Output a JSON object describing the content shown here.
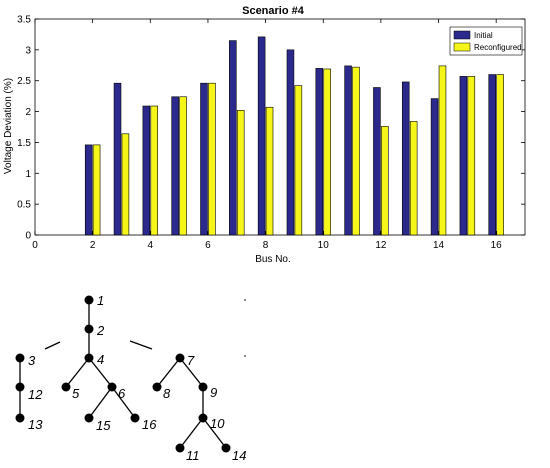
{
  "chart_data": {
    "type": "bar",
    "title": "Scenario #4",
    "xlabel": "Bus No.",
    "ylabel": "Voltage Deviation (%)",
    "xlim": [
      0,
      17
    ],
    "ylim": [
      0,
      3.5
    ],
    "xticks": [
      0,
      2,
      4,
      6,
      8,
      10,
      12,
      14,
      16
    ],
    "yticks": [
      0,
      0.5,
      1,
      1.5,
      2,
      2.5,
      3,
      3.5
    ],
    "legend_position": "top-right",
    "x": [
      2,
      3,
      4,
      5,
      6,
      7,
      8,
      9,
      10,
      11,
      12,
      13,
      14,
      15,
      16
    ],
    "series": [
      {
        "name": "Initial",
        "color": "#2b2a8c",
        "values": [
          1.46,
          2.46,
          2.09,
          2.24,
          2.46,
          3.15,
          3.21,
          3.0,
          2.7,
          2.74,
          2.39,
          2.48,
          2.21,
          2.57,
          2.6
        ]
      },
      {
        "name": "Reconfigured",
        "color": "#f5f51a",
        "values": [
          1.46,
          1.64,
          2.09,
          2.24,
          2.46,
          2.02,
          2.07,
          2.42,
          2.69,
          2.72,
          1.76,
          1.84,
          2.74,
          2.57,
          2.6
        ]
      }
    ]
  },
  "network": {
    "nodes": [
      {
        "id": "1",
        "label": "1"
      },
      {
        "id": "2",
        "label": "2"
      },
      {
        "id": "3",
        "label": "3"
      },
      {
        "id": "4",
        "label": "4"
      },
      {
        "id": "5",
        "label": "5"
      },
      {
        "id": "6",
        "label": "6"
      },
      {
        "id": "7",
        "label": "7"
      },
      {
        "id": "8",
        "label": "8"
      },
      {
        "id": "9",
        "label": "9"
      },
      {
        "id": "10",
        "label": "10"
      },
      {
        "id": "11",
        "label": "11"
      },
      {
        "id": "12",
        "label": "12"
      },
      {
        "id": "13",
        "label": "13"
      },
      {
        "id": "14",
        "label": "14"
      },
      {
        "id": "15",
        "label": "15"
      },
      {
        "id": "16",
        "label": "16"
      }
    ],
    "edges": [
      [
        "1",
        "2"
      ],
      [
        "2",
        "4"
      ],
      [
        "4",
        "5"
      ],
      [
        "4",
        "6"
      ],
      [
        "6",
        "15"
      ],
      [
        "6",
        "16"
      ],
      [
        "3",
        "12"
      ],
      [
        "12",
        "13"
      ],
      [
        "7",
        "8"
      ],
      [
        "7",
        "9"
      ],
      [
        "9",
        "10"
      ],
      [
        "10",
        "11"
      ],
      [
        "10",
        "14"
      ]
    ],
    "open_edges": [
      [
        "2",
        "3"
      ],
      [
        "2",
        "7"
      ]
    ]
  }
}
